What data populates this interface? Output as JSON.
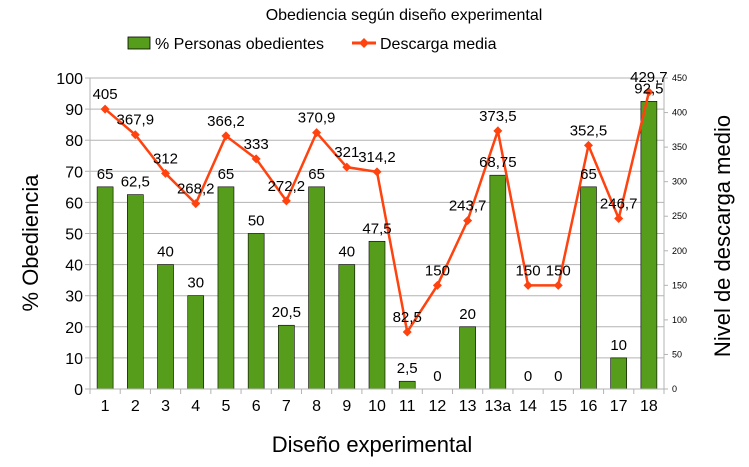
{
  "chart_data": {
    "type": "bar",
    "title": "Obediencia según diseño experimental",
    "xlabel": "Diseño experimental",
    "ylabel": "% Obediencia",
    "y2label": "Nivel de descarga medio",
    "categories": [
      "1",
      "2",
      "3",
      "4",
      "5",
      "6",
      "7",
      "8",
      "9",
      "10",
      "11",
      "12",
      "13",
      "13a",
      "14",
      "15",
      "16",
      "17",
      "18"
    ],
    "ylim": [
      0,
      100
    ],
    "y2lim": [
      0,
      450
    ],
    "yticks": [
      "0",
      "10",
      "20",
      "30",
      "40",
      "50",
      "60",
      "70",
      "80",
      "90",
      "100"
    ],
    "y2ticks": [
      "0",
      "50",
      "100",
      "150",
      "200",
      "250",
      "300",
      "350",
      "400",
      "450"
    ],
    "grid": true,
    "legend_position": "top",
    "series": [
      {
        "name": "% Personas obedientes",
        "type": "bar",
        "axis": "left",
        "color": "#579d1c",
        "values": [
          65,
          62.5,
          40,
          30,
          65,
          50,
          20.5,
          65,
          40,
          47.5,
          2.5,
          0,
          20,
          68.75,
          0,
          0,
          65,
          10,
          92.5
        ],
        "labels": [
          "65",
          "62,5",
          "40",
          "30",
          "65",
          "50",
          "20,5",
          "65",
          "40",
          "47,5",
          "2,5",
          "0",
          "20",
          "68,75",
          "0",
          "0",
          "65",
          "10",
          "92,5"
        ]
      },
      {
        "name": "Descarga media",
        "type": "line",
        "axis": "right",
        "color": "#ff420e",
        "values": [
          405,
          367.9,
          312,
          268.2,
          366.2,
          333,
          272.2,
          370.9,
          321,
          314.2,
          82.5,
          150,
          243.7,
          373.5,
          150,
          150,
          352.5,
          246.7,
          429.7
        ],
        "labels": [
          "405",
          "367,9",
          "312",
          "268,2",
          "366,2",
          "333",
          "272,2",
          "370,9",
          "321",
          "314,2",
          "82,5",
          "150",
          "243,7",
          "373,5",
          "150",
          "150",
          "352,5",
          "246,7",
          "429,7"
        ]
      }
    ]
  }
}
